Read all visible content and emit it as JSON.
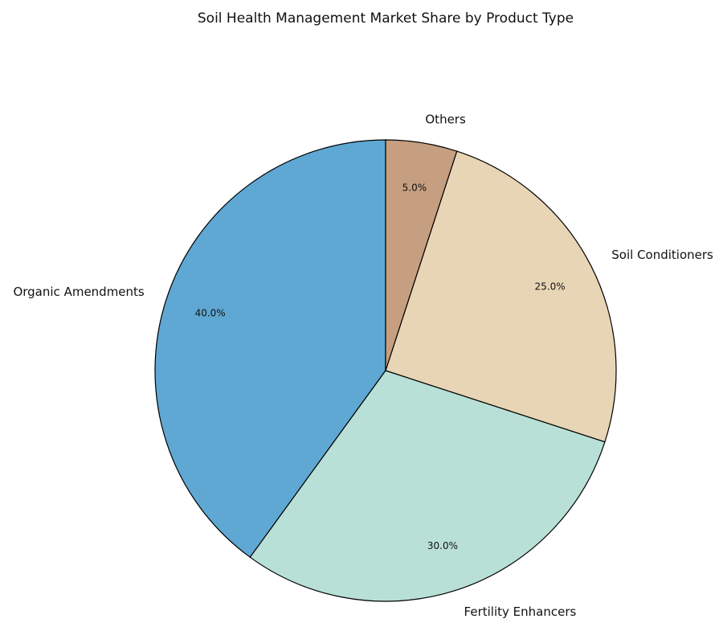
{
  "chart_data": {
    "type": "pie",
    "title": "Soil Health Management Market Share by Product Type",
    "start_angle_deg": 90,
    "direction": "counterclockwise",
    "slices": [
      {
        "label": "Organic Amendments",
        "value": 40,
        "pct_label": "40.0%",
        "color": "#5fa8d3"
      },
      {
        "label": "Fertility Enhancers",
        "value": 30,
        "pct_label": "30.0%",
        "color": "#b8e0d6"
      },
      {
        "label": "Soil Conditioners",
        "value": 25,
        "pct_label": "25.0%",
        "color": "#e7d5b5"
      },
      {
        "label": "Others",
        "value": 5,
        "pct_label": "5.0%",
        "color": "#c69f80"
      }
    ]
  }
}
